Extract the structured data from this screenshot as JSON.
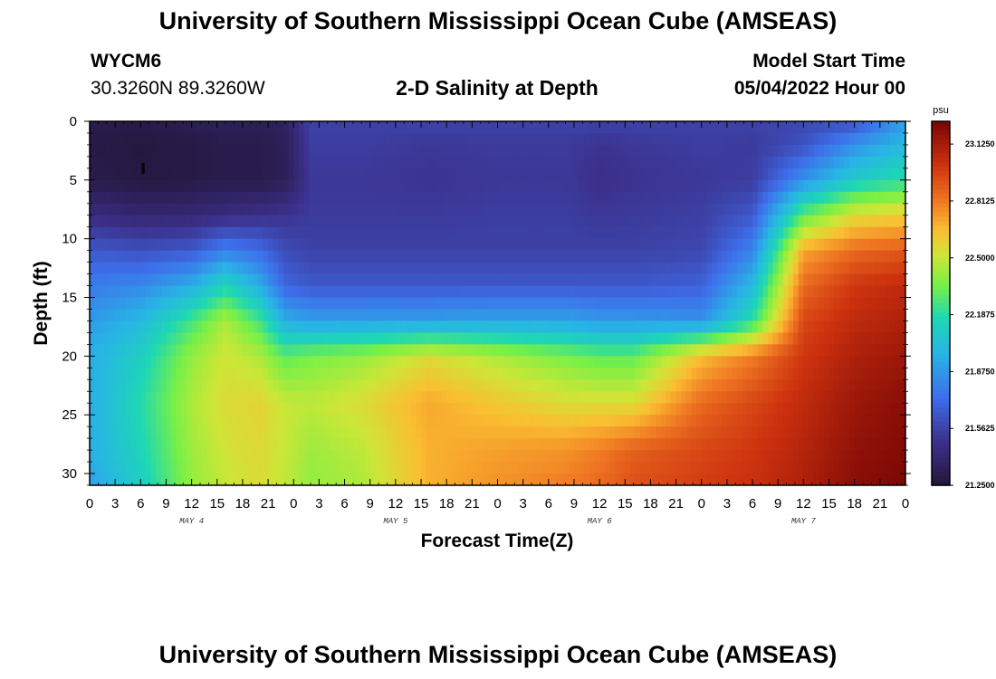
{
  "header": {
    "title": "University of Southern Mississippi Ocean Cube (AMSEAS)",
    "station": "WYCM6",
    "coords": "30.3260N  89.3260W",
    "plot_title": "2-D Salinity at Depth",
    "start_label": "Model Start Time",
    "start_value": "05/04/2022 Hour 00"
  },
  "footer": {
    "title": "University of Southern Mississippi Ocean Cube (AMSEAS)"
  },
  "chart_data": {
    "type": "heatmap",
    "title": "2-D Salinity at Depth",
    "xlabel": "Forecast Time(Z)",
    "ylabel": "Depth (ft)",
    "x_ticks": [
      "0",
      "3",
      "6",
      "9",
      "12",
      "15",
      "18",
      "21",
      "0",
      "3",
      "6",
      "9",
      "12",
      "15",
      "18",
      "21",
      "0",
      "3",
      "6",
      "9",
      "12",
      "15",
      "18",
      "21",
      "0",
      "3",
      "6",
      "9",
      "12",
      "15",
      "18",
      "21",
      "0"
    ],
    "day_labels": [
      "MAY 4",
      "MAY 5",
      "MAY 6",
      "MAY 7"
    ],
    "y_ticks": [
      "0",
      "5",
      "10",
      "15",
      "20",
      "25",
      "30"
    ],
    "ylim": [
      0,
      31
    ],
    "xlim_hours": [
      0,
      96
    ],
    "colorbar": {
      "unit": "psu",
      "ticks": [
        "23.1250",
        "22.8125",
        "22.5000",
        "22.1875",
        "21.8750",
        "21.5625",
        "21.2500"
      ],
      "range": [
        21.25,
        23.25
      ]
    },
    "marker": {
      "hour": 6.3,
      "depth": 4,
      "label": "I"
    },
    "hours": [
      0,
      6,
      12,
      16,
      20,
      23,
      26,
      32,
      40,
      48,
      56,
      60,
      64,
      72,
      78,
      84,
      90,
      96
    ],
    "depths": [
      0,
      2,
      5,
      8,
      11,
      14,
      17,
      20,
      24,
      28,
      31
    ],
    "salinity": [
      [
        21.3,
        21.3,
        21.32,
        21.34,
        21.34,
        21.36,
        21.56,
        21.56,
        21.56,
        21.56,
        21.56,
        21.56,
        21.56,
        21.56,
        21.56,
        21.58,
        21.62,
        21.9
      ],
      [
        21.28,
        21.26,
        21.28,
        21.3,
        21.3,
        21.33,
        21.54,
        21.54,
        21.52,
        21.53,
        21.53,
        21.5,
        21.52,
        21.54,
        21.53,
        21.62,
        21.85,
        22.0
      ],
      [
        21.3,
        21.27,
        21.28,
        21.3,
        21.3,
        21.33,
        21.52,
        21.52,
        21.5,
        21.52,
        21.52,
        21.48,
        21.5,
        21.52,
        21.54,
        21.85,
        22.1,
        22.2
      ],
      [
        21.45,
        21.4,
        21.42,
        21.45,
        21.48,
        21.5,
        21.53,
        21.53,
        21.53,
        21.54,
        21.54,
        21.52,
        21.53,
        21.55,
        21.65,
        22.3,
        22.55,
        22.6
      ],
      [
        21.65,
        21.62,
        21.65,
        21.8,
        21.72,
        21.6,
        21.56,
        21.56,
        21.56,
        21.56,
        21.56,
        21.56,
        21.56,
        21.58,
        21.8,
        22.7,
        22.85,
        22.9
      ],
      [
        21.78,
        21.82,
        21.95,
        22.15,
        21.95,
        21.7,
        21.65,
        21.65,
        21.65,
        21.65,
        21.65,
        21.65,
        21.65,
        21.68,
        22.0,
        22.85,
        23.0,
        23.05
      ],
      [
        21.88,
        22.0,
        22.25,
        22.45,
        22.25,
        21.95,
        21.9,
        21.9,
        21.9,
        21.92,
        21.92,
        21.88,
        21.88,
        21.85,
        22.2,
        22.95,
        23.05,
        23.1
      ],
      [
        21.95,
        22.12,
        22.4,
        22.52,
        22.45,
        22.3,
        22.35,
        22.4,
        22.55,
        22.45,
        22.35,
        22.3,
        22.3,
        22.65,
        22.8,
        23.0,
        23.1,
        23.15
      ],
      [
        21.95,
        22.18,
        22.45,
        22.55,
        22.58,
        22.5,
        22.48,
        22.55,
        22.7,
        22.62,
        22.55,
        22.55,
        22.55,
        22.85,
        22.95,
        23.05,
        23.15,
        23.2
      ],
      [
        21.95,
        22.15,
        22.42,
        22.52,
        22.56,
        22.5,
        22.42,
        22.48,
        22.68,
        22.72,
        22.75,
        22.8,
        22.88,
        22.95,
        23.0,
        23.08,
        23.18,
        23.22
      ],
      [
        21.9,
        22.12,
        22.4,
        22.5,
        22.55,
        22.48,
        22.4,
        22.45,
        22.68,
        22.75,
        22.8,
        22.85,
        22.92,
        22.98,
        23.02,
        23.1,
        23.2,
        23.24
      ]
    ]
  }
}
